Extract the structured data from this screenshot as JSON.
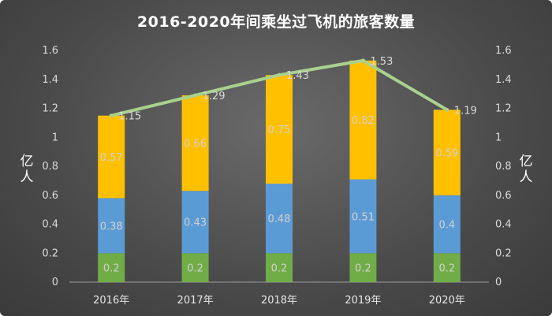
{
  "chart_data": {
    "type": "bar",
    "stacked": true,
    "title": "2016-2020年间乘坐过飞机的旅客数量",
    "ylabel_left": "亿人",
    "ylabel_right": "亿人",
    "categories": [
      "2016年",
      "2017年",
      "2018年",
      "2019年",
      "2020年"
    ],
    "ylim": [
      0,
      1.6
    ],
    "yticks": [
      "0",
      "0.2",
      "0.4",
      "0.6",
      "0.8",
      "1",
      "1.2",
      "1.4",
      "1.6"
    ],
    "grid": false,
    "legend": "none",
    "series": [
      {
        "type": "bar",
        "color": "#70ad47",
        "values": [
          0.2,
          0.2,
          0.2,
          0.2,
          0.2
        ],
        "labels": [
          "0.2",
          "0.2",
          "0.2",
          "0.2",
          "0.2"
        ]
      },
      {
        "type": "bar",
        "color": "#5b9bd5",
        "values": [
          0.38,
          0.43,
          0.48,
          0.51,
          0.4
        ],
        "labels": [
          "0.38",
          "0.43",
          "0.48",
          "0.51",
          "0.4"
        ]
      },
      {
        "type": "bar",
        "color": "#ffc000",
        "values": [
          0.57,
          0.66,
          0.75,
          0.82,
          0.59
        ],
        "labels": [
          "0.57",
          "0.66",
          "0.75",
          "0.82",
          "0.59"
        ]
      },
      {
        "type": "line",
        "color": "#a9d18e",
        "values": [
          1.15,
          1.29,
          1.43,
          1.53,
          1.19
        ],
        "labels": [
          "1.15",
          "1.29",
          "1.43",
          "1.53",
          "1.19"
        ]
      }
    ]
  }
}
